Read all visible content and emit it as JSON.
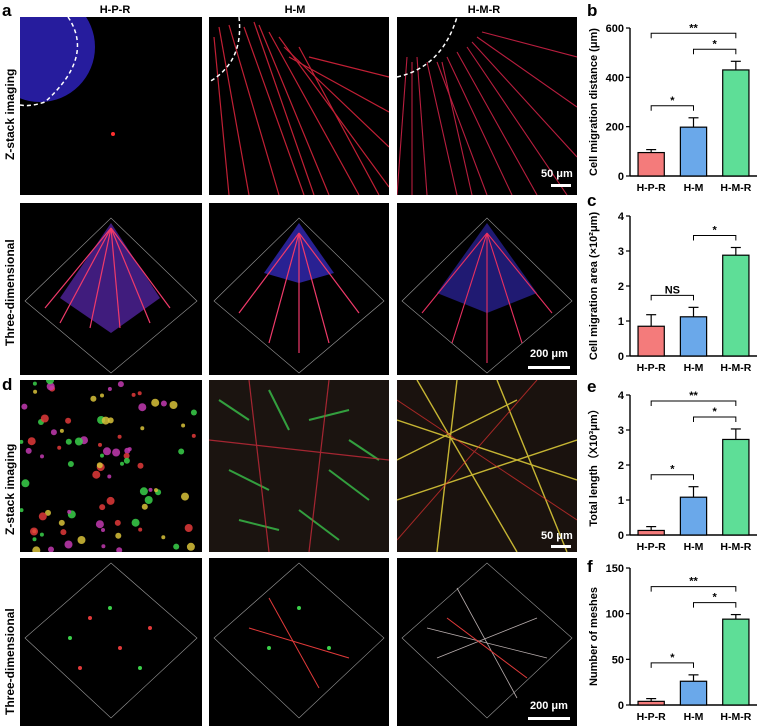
{
  "panels": {
    "a": "a",
    "b": "b",
    "c": "c",
    "d": "d",
    "e": "e",
    "f": "f"
  },
  "columns": [
    "H-P-R",
    "H-M",
    "H-M-R"
  ],
  "rows": {
    "a_top": "Z-stack imaging",
    "a_bottom": "Three-dimensional",
    "d_top": "Z-stack imaging",
    "d_bottom": "Three-dimensional"
  },
  "scalebars": {
    "a_top": "50 μm",
    "a_bottom": "200 μm",
    "d_top": "50 μm",
    "d_bottom": "200 μm"
  },
  "colors": {
    "hpr": "#f47b7b",
    "hm": "#6aa8ea",
    "hmr": "#5ede97"
  },
  "chart_data": [
    {
      "panel": "b",
      "type": "bar",
      "categories": [
        "H-P-R",
        "H-M",
        "H-M-R"
      ],
      "values": [
        95,
        198,
        430
      ],
      "errors": [
        12,
        38,
        35
      ],
      "ylabel": "Cell migration distance (μm)",
      "ylim": [
        0,
        600
      ],
      "yticks": [
        "0",
        "200",
        "400",
        "600"
      ],
      "significance": [
        {
          "from": 0,
          "to": 1,
          "label": "*"
        },
        {
          "from": 1,
          "to": 2,
          "label": "*"
        },
        {
          "from": 0,
          "to": 2,
          "label": "**"
        }
      ]
    },
    {
      "panel": "c",
      "type": "bar",
      "categories": [
        "H-P-R",
        "H-M",
        "H-M-R"
      ],
      "values": [
        0.85,
        1.12,
        2.88
      ],
      "errors": [
        0.33,
        0.27,
        0.22
      ],
      "ylabel": "Cell migration area (×10²μm)",
      "ylim": [
        0,
        4
      ],
      "yticks": [
        "0",
        "1",
        "2",
        "3",
        "4"
      ],
      "significance": [
        {
          "from": 0,
          "to": 1,
          "label": "NS"
        },
        {
          "from": 1,
          "to": 2,
          "label": "*"
        }
      ]
    },
    {
      "panel": "e",
      "type": "bar",
      "categories": [
        "H-P-R",
        "H-M",
        "H-M-R"
      ],
      "values": [
        0.13,
        1.08,
        2.73
      ],
      "errors": [
        0.11,
        0.3,
        0.3
      ],
      "ylabel": "Total length（X10³μm）",
      "ylim": [
        0,
        4
      ],
      "yticks": [
        "0",
        "1",
        "2",
        "3",
        "4"
      ],
      "significance": [
        {
          "from": 0,
          "to": 1,
          "label": "*"
        },
        {
          "from": 1,
          "to": 2,
          "label": "*"
        },
        {
          "from": 0,
          "to": 2,
          "label": "**"
        }
      ]
    },
    {
      "panel": "f",
      "type": "bar",
      "categories": [
        "H-P-R",
        "H-M",
        "H-M-R"
      ],
      "values": [
        4,
        26,
        94
      ],
      "errors": [
        3,
        7,
        5
      ],
      "ylabel": "Number of meshes",
      "ylim": [
        0,
        150
      ],
      "yticks": [
        "0",
        "50",
        "100",
        "150"
      ],
      "significance": [
        {
          "from": 0,
          "to": 1,
          "label": "*"
        },
        {
          "from": 1,
          "to": 2,
          "label": "*"
        },
        {
          "from": 0,
          "to": 2,
          "label": "**"
        }
      ]
    }
  ]
}
